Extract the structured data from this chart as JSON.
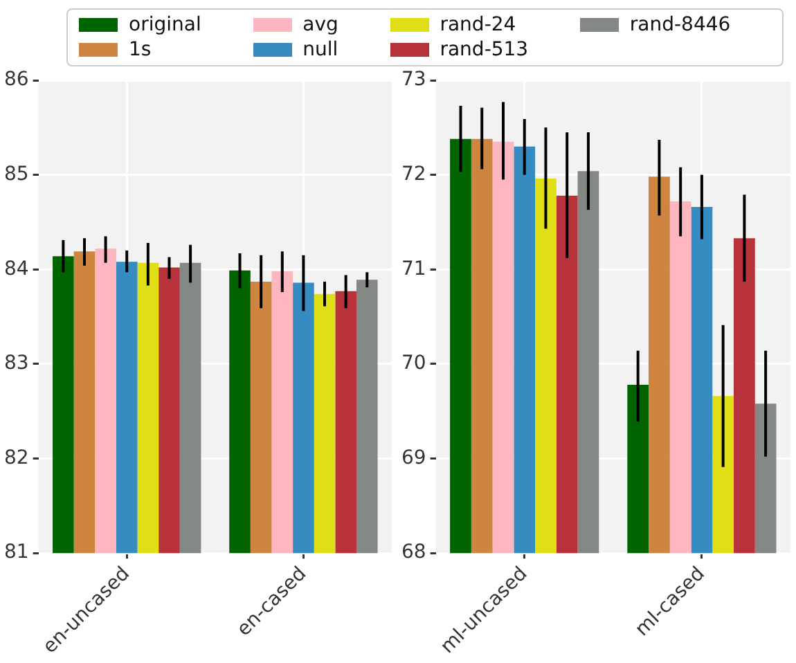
{
  "chart_data": [
    {
      "type": "bar",
      "categories": [
        "en-uncased",
        "en-cased"
      ],
      "ylim": [
        81,
        86
      ],
      "yticks": [
        81,
        82,
        83,
        84,
        85,
        86
      ],
      "grid": true,
      "legend": "top",
      "series": [
        {
          "name": "original",
          "color": "#006400",
          "values": [
            84.14,
            83.99
          ],
          "errors": [
            [
              83.97,
              84.31
            ],
            [
              83.8,
              84.17
            ]
          ]
        },
        {
          "name": "1s",
          "color": "#cd853f",
          "values": [
            84.19,
            83.87
          ],
          "errors": [
            [
              84.04,
              84.33
            ],
            [
              83.59,
              84.15
            ]
          ]
        },
        {
          "name": "avg",
          "color": "#ffb6c1",
          "values": [
            84.22,
            83.98
          ],
          "errors": [
            [
              84.07,
              84.35
            ],
            [
              83.76,
              84.19
            ]
          ]
        },
        {
          "name": "null",
          "color": "#368bc1",
          "values": [
            84.08,
            83.86
          ],
          "errors": [
            [
              83.97,
              84.2
            ],
            [
              83.56,
              84.15
            ]
          ]
        },
        {
          "name": "rand-24",
          "color": "#e0df17",
          "values": [
            84.07,
            83.74
          ],
          "errors": [
            [
              83.83,
              84.28
            ],
            [
              83.61,
              83.87
            ]
          ]
        },
        {
          "name": "rand-513",
          "color": "#b8323b",
          "values": [
            84.02,
            83.77
          ],
          "errors": [
            [
              83.9,
              84.13
            ],
            [
              83.59,
              83.94
            ]
          ]
        },
        {
          "name": "rand-8446",
          "color": "#848884",
          "values": [
            84.07,
            83.89
          ],
          "errors": [
            [
              83.86,
              84.26
            ],
            [
              83.81,
              83.97
            ]
          ]
        }
      ]
    },
    {
      "type": "bar",
      "categories": [
        "ml-uncased",
        "ml-cased"
      ],
      "ylim": [
        68,
        73
      ],
      "yticks": [
        68,
        69,
        70,
        71,
        72,
        73
      ],
      "grid": true,
      "legend": "top",
      "series": [
        {
          "name": "original",
          "color": "#006400",
          "values": [
            72.38,
            69.78
          ],
          "errors": [
            [
              72.03,
              72.73
            ],
            [
              69.39,
              70.14
            ]
          ]
        },
        {
          "name": "1s",
          "color": "#cd853f",
          "values": [
            72.38,
            71.98
          ],
          "errors": [
            [
              72.06,
              72.71
            ],
            [
              71.57,
              72.37
            ]
          ]
        },
        {
          "name": "avg",
          "color": "#ffb6c1",
          "values": [
            72.35,
            71.72
          ],
          "errors": [
            [
              71.95,
              72.77
            ],
            [
              71.35,
              72.08
            ]
          ]
        },
        {
          "name": "null",
          "color": "#368bc1",
          "values": [
            72.3,
            71.66
          ],
          "errors": [
            [
              72.0,
              72.59
            ],
            [
              71.32,
              72.0
            ]
          ]
        },
        {
          "name": "rand-24",
          "color": "#e0df17",
          "values": [
            71.96,
            69.66
          ],
          "errors": [
            [
              71.43,
              72.5
            ],
            [
              68.91,
              70.41
            ]
          ]
        },
        {
          "name": "rand-513",
          "color": "#b8323b",
          "values": [
            71.78,
            71.33
          ],
          "errors": [
            [
              71.12,
              72.45
            ],
            [
              70.87,
              71.79
            ]
          ]
        },
        {
          "name": "rand-8446",
          "color": "#848884",
          "values": [
            72.04,
            69.58
          ],
          "errors": [
            [
              71.63,
              72.45
            ],
            [
              69.02,
              70.14
            ]
          ]
        }
      ]
    }
  ]
}
